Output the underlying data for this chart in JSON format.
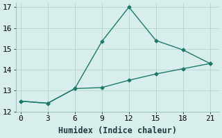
{
  "line1_x": [
    0,
    3,
    6,
    9,
    12,
    15,
    18,
    21
  ],
  "line1_y": [
    12.5,
    12.4,
    13.1,
    15.35,
    17.0,
    15.4,
    14.95,
    14.3
  ],
  "line2_x": [
    0,
    3,
    6,
    9,
    12,
    15,
    18,
    21
  ],
  "line2_y": [
    12.5,
    12.4,
    13.1,
    13.15,
    13.5,
    13.8,
    14.05,
    14.3
  ],
  "line_color": "#1a7a6a",
  "bg_color": "#d8eeec",
  "grid_color": "#b8d8d4",
  "xlabel": "Humidex (Indice chaleur)",
  "xlim": [
    -0.5,
    22
  ],
  "ylim": [
    12,
    17.2
  ],
  "xticks": [
    0,
    3,
    6,
    9,
    12,
    15,
    18,
    21
  ],
  "yticks": [
    12,
    13,
    14,
    15,
    16,
    17
  ],
  "xlabel_fontsize": 8.5,
  "tick_fontsize": 8,
  "marker": "D",
  "marker_size": 2.5,
  "line_width": 1.0
}
